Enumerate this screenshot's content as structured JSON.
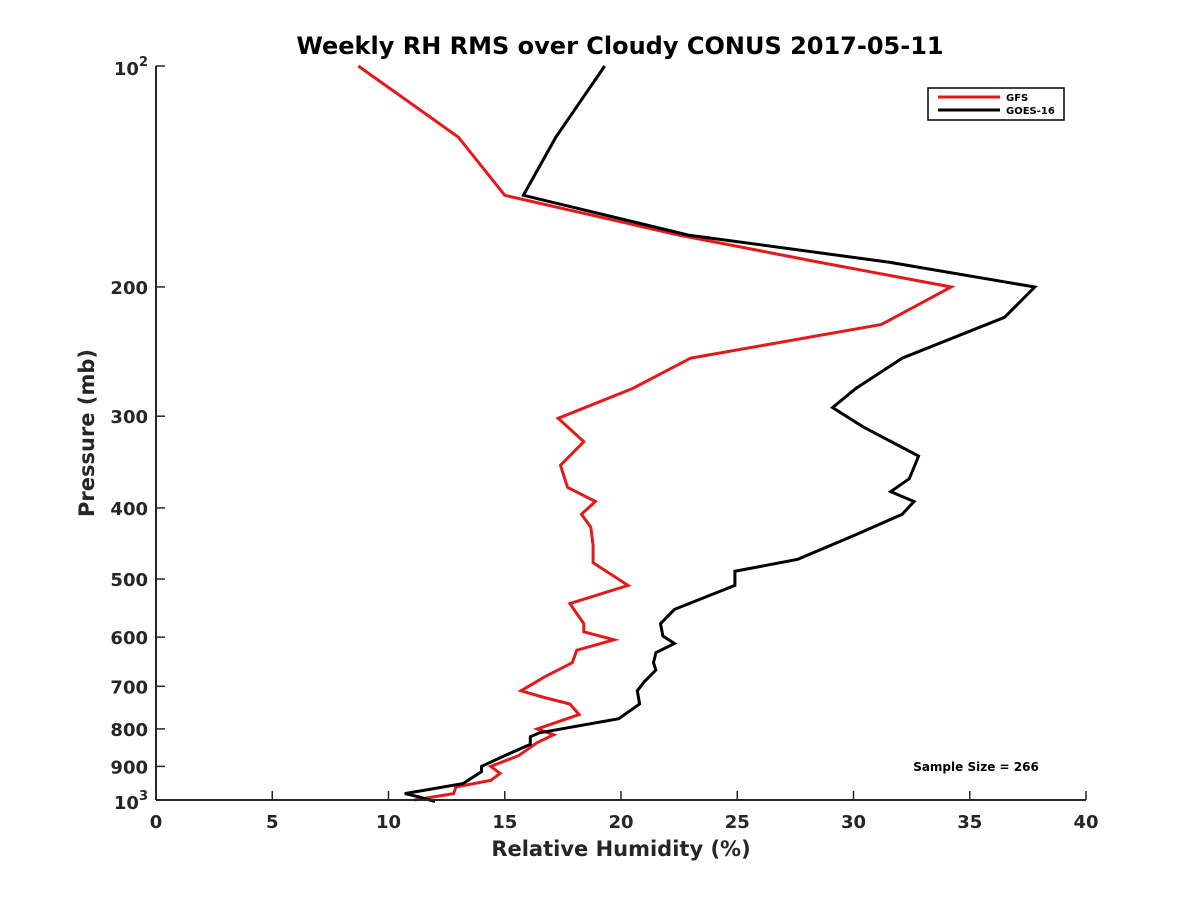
{
  "chart_data": {
    "type": "line",
    "title": "Weekly RH RMS over Cloudy CONUS 2017-05-11",
    "xlabel": "Relative Humidity (%)",
    "ylabel": "Pressure (mb)",
    "xlim": [
      0,
      40
    ],
    "ylim": [
      100,
      1000
    ],
    "y_scale": "log",
    "y_reversed": true,
    "grid": false,
    "legend_position": "top-right",
    "x_ticks": [
      0,
      5,
      10,
      15,
      20,
      25,
      30,
      35,
      40
    ],
    "x_tick_labels": [
      "0",
      "5",
      "10",
      "15",
      "20",
      "25",
      "30",
      "35",
      "40"
    ],
    "y_ticks": [
      {
        "value": 100,
        "base": "10",
        "exponent": "2"
      },
      {
        "value": 200,
        "label": "200"
      },
      {
        "value": 300,
        "label": "300"
      },
      {
        "value": 400,
        "label": "400"
      },
      {
        "value": 500,
        "label": "500"
      },
      {
        "value": 600,
        "label": "600"
      },
      {
        "value": 700,
        "label": "700"
      },
      {
        "value": 800,
        "label": "800"
      },
      {
        "value": 900,
        "label": "900"
      },
      {
        "value": 1000,
        "base": "10",
        "exponent": "3"
      }
    ],
    "annotation": "Sample Size = 266",
    "series": [
      {
        "name": "GFS",
        "color": "#e31a1c",
        "points": [
          [
            8.7,
            100
          ],
          [
            13.0,
            125
          ],
          [
            15.0,
            150
          ],
          [
            22.5,
            170
          ],
          [
            28.5,
            185
          ],
          [
            34.2,
            200
          ],
          [
            31.2,
            225
          ],
          [
            23.0,
            250
          ],
          [
            20.5,
            275
          ],
          [
            17.3,
            302
          ],
          [
            18.4,
            325
          ],
          [
            17.4,
            350
          ],
          [
            17.7,
            375
          ],
          [
            18.9,
            392
          ],
          [
            18.3,
            408
          ],
          [
            18.7,
            425
          ],
          [
            18.8,
            450
          ],
          [
            18.8,
            475
          ],
          [
            20.3,
            510
          ],
          [
            17.8,
            540
          ],
          [
            18.4,
            575
          ],
          [
            18.4,
            590
          ],
          [
            19.7,
            605
          ],
          [
            18.1,
            625
          ],
          [
            17.9,
            650
          ],
          [
            16.7,
            680
          ],
          [
            15.7,
            710
          ],
          [
            16.7,
            725
          ],
          [
            17.8,
            740
          ],
          [
            18.2,
            765
          ],
          [
            16.4,
            800
          ],
          [
            17.1,
            815
          ],
          [
            16.4,
            835
          ],
          [
            15.6,
            870
          ],
          [
            14.4,
            900
          ],
          [
            14.8,
            920
          ],
          [
            14.4,
            940
          ],
          [
            12.9,
            960
          ],
          [
            12.8,
            980
          ],
          [
            11.1,
            1000
          ]
        ]
      },
      {
        "name": "GOES-16",
        "color": "#000000",
        "points": [
          [
            19.3,
            100
          ],
          [
            17.2,
            125
          ],
          [
            15.8,
            150
          ],
          [
            22.9,
            170
          ],
          [
            31.5,
            185
          ],
          [
            37.8,
            200
          ],
          [
            36.5,
            220
          ],
          [
            32.1,
            250
          ],
          [
            30.1,
            275
          ],
          [
            29.1,
            292
          ],
          [
            30.4,
            310
          ],
          [
            32.8,
            340
          ],
          [
            32.4,
            365
          ],
          [
            31.6,
            380
          ],
          [
            32.6,
            392
          ],
          [
            32.1,
            408
          ],
          [
            30.1,
            435
          ],
          [
            27.6,
            470
          ],
          [
            24.9,
            488
          ],
          [
            24.9,
            510
          ],
          [
            22.3,
            550
          ],
          [
            21.7,
            575
          ],
          [
            21.8,
            598
          ],
          [
            22.3,
            612
          ],
          [
            21.5,
            630
          ],
          [
            21.4,
            650
          ],
          [
            21.5,
            665
          ],
          [
            21.0,
            690
          ],
          [
            20.7,
            710
          ],
          [
            20.8,
            740
          ],
          [
            19.9,
            775
          ],
          [
            16.5,
            810
          ],
          [
            16.1,
            820
          ],
          [
            16.1,
            840
          ],
          [
            15.0,
            870
          ],
          [
            14.0,
            900
          ],
          [
            14.0,
            915
          ],
          [
            13.2,
            950
          ],
          [
            10.7,
            980
          ],
          [
            11.3,
            990
          ],
          [
            12.0,
            1005
          ]
        ]
      }
    ]
  }
}
